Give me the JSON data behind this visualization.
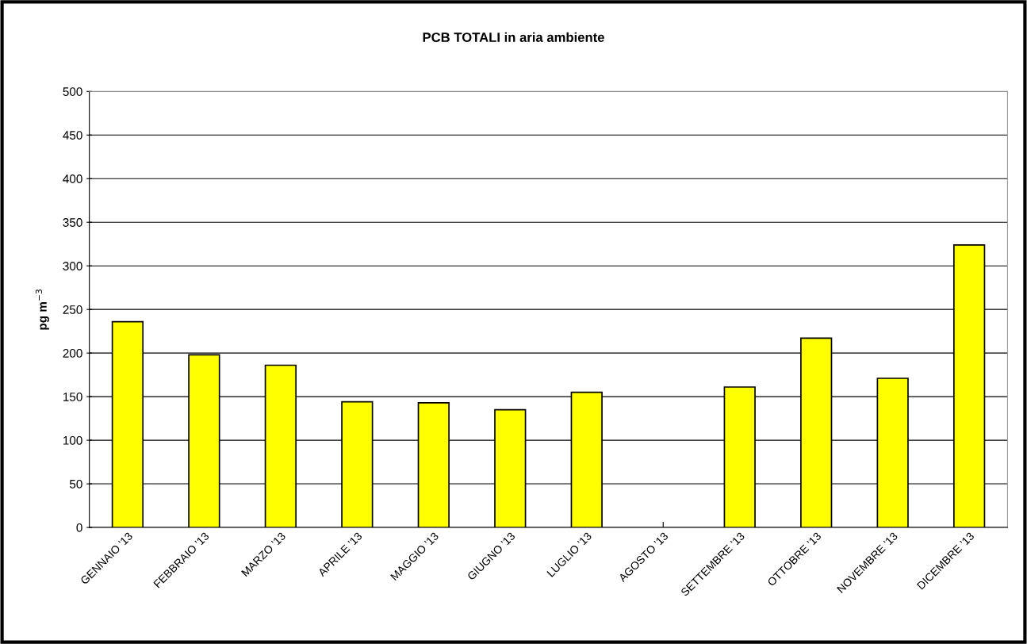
{
  "chart_data": {
    "type": "bar",
    "title": "PCB TOTALI in aria ambiente",
    "ylabel": "pg m$^{−3}$",
    "categories": [
      "GENNAIO '13",
      "FEBBRAIO '13",
      "MARZO '13",
      "APRILE '13",
      "MAGGIO '13",
      "GIUGNO '13",
      "LUGLIO '13",
      "AGOSTO '13",
      "SETTEMBRE '13",
      "OTTOBRE '13",
      "NOVEMBRE '13",
      "DICEMBRE '13"
    ],
    "values": [
      236,
      198,
      186,
      144,
      143,
      135,
      155,
      null,
      161,
      217,
      171,
      324
    ],
    "color": "#ffff00",
    "ylim": [
      0,
      500
    ],
    "yticks": [
      0,
      50,
      100,
      150,
      200,
      250,
      300,
      350,
      400,
      450,
      500
    ],
    "grid": "y",
    "legend": false
  }
}
